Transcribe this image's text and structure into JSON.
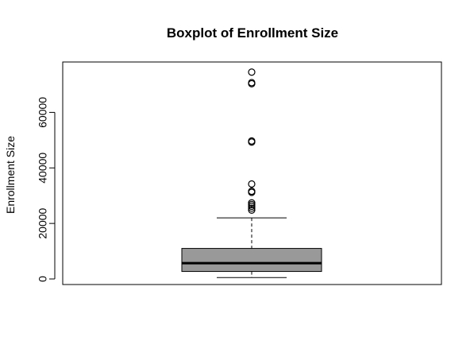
{
  "chart_data": {
    "type": "boxplot",
    "title": "Boxplot of Enrollment Size",
    "xlabel": "",
    "ylabel": "Enrollment Size",
    "ylim": [
      0,
      75000
    ],
    "yticks": [
      0,
      20000,
      40000,
      60000
    ],
    "ytick_labels": [
      "0",
      "20000",
      "40000",
      "60000"
    ],
    "box": {
      "whisker_low": 500,
      "q1": 2700,
      "median": 5700,
      "q3": 11000,
      "whisker_high": 22000
    },
    "outliers": [
      24800,
      25500,
      26200,
      26800,
      27400,
      31200,
      31600,
      34200,
      49300,
      49700,
      70300,
      70700,
      74500
    ],
    "colors": {
      "box_fill": "#999999",
      "stroke": "#000000",
      "background": "#ffffff"
    },
    "grid": false
  }
}
